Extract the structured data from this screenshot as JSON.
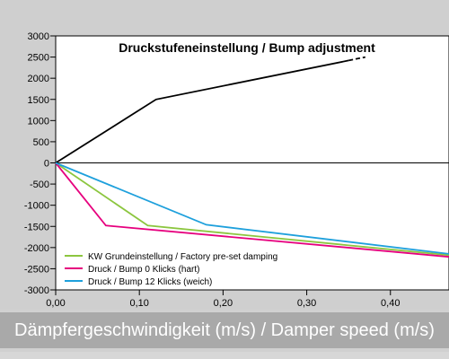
{
  "chart_data": {
    "type": "line",
    "title": "Druckstufeneinstellung / Bump adjustment",
    "xlabel": "Dämpfergeschwindigkeit (m/s) / Damper speed (m/s)",
    "ylabel": "",
    "xlim": [
      0,
      0.47
    ],
    "ylim": [
      -3000,
      3000
    ],
    "x_ticks": [
      "0,00",
      "0,10",
      "0,20",
      "0,30",
      "0,40"
    ],
    "y_ticks": [
      "3000",
      "2500",
      "2000",
      "1500",
      "1000",
      "500",
      "0",
      "-500",
      "-1000",
      "-1500",
      "-2000",
      "-2500",
      "-3000"
    ],
    "grid": false,
    "legend_position": "bottom-left",
    "upper_curve": {
      "color": "#000000",
      "points": [
        [
          0.0,
          0
        ],
        [
          0.12,
          1500
        ],
        [
          0.35,
          2420
        ]
      ],
      "dashed_points": [
        [
          0.35,
          2420
        ],
        [
          0.37,
          2500
        ]
      ]
    },
    "series": [
      {
        "name": "KW Grundeinstellung / Factory pre-set damping",
        "color": "#8cc63f",
        "points": [
          [
            0.0,
            0
          ],
          [
            0.11,
            -1480
          ],
          [
            0.47,
            -2180
          ]
        ]
      },
      {
        "name": "Druck / Bump 0 Klicks (hart)",
        "color": "#e6007e",
        "points": [
          [
            0.0,
            0
          ],
          [
            0.06,
            -1480
          ],
          [
            0.47,
            -2220
          ]
        ]
      },
      {
        "name": "Druck / Bump 12 Klicks (weich)",
        "color": "#1ea0dc",
        "points": [
          [
            0.0,
            0
          ],
          [
            0.18,
            -1460
          ],
          [
            0.47,
            -2150
          ]
        ]
      }
    ]
  }
}
